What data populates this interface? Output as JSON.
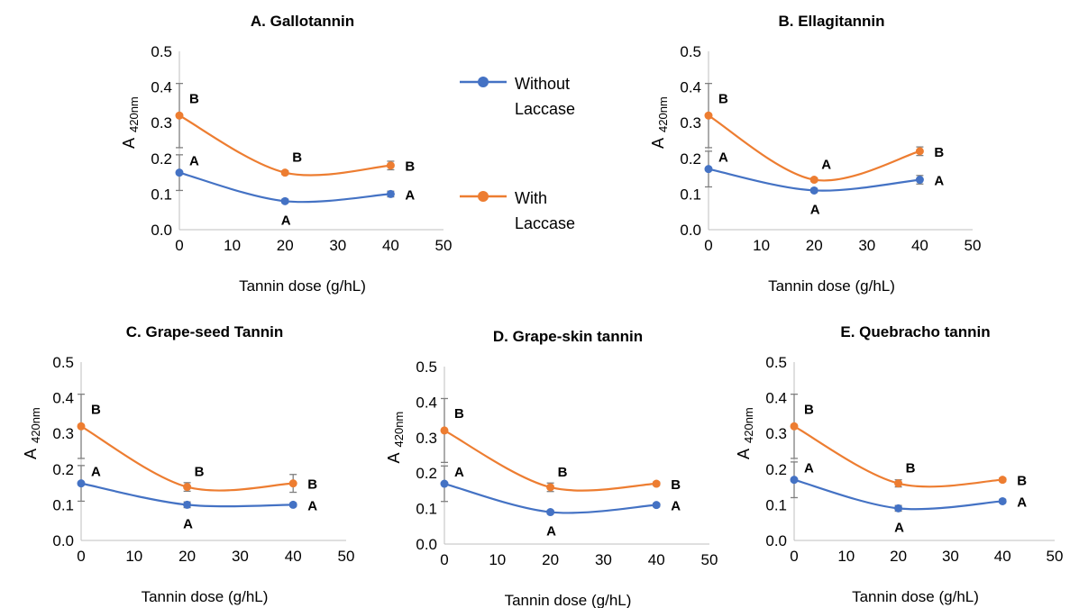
{
  "legend": {
    "items": [
      {
        "label_line1": "Without",
        "label_line2": "Laccase",
        "color": "#4472C4"
      },
      {
        "label_line1": "With",
        "label_line2": "Laccase",
        "color": "#ED7D31"
      }
    ]
  },
  "chart_data": [
    {
      "type": "line",
      "title": "A. Gallotannin",
      "xlabel": "Tannin dose (g/hL)",
      "ylabel_main": "A",
      "ylabel_sub": "420nm",
      "xlim": [
        0,
        50
      ],
      "ylim": [
        0,
        0.5
      ],
      "x_ticks": [
        "0",
        "10",
        "20",
        "30",
        "40",
        "50"
      ],
      "y_ticks": [
        "0.0",
        "0.1",
        "0.2",
        "0.3",
        "0.4",
        "0.5"
      ],
      "x": [
        0,
        20,
        40
      ],
      "series": [
        {
          "color": "#4472C4",
          "values": [
            0.16,
            0.08,
            0.1
          ],
          "errors": [
            0.05,
            0.005,
            0.008
          ],
          "letters": [
            "A",
            "A",
            "A"
          ],
          "letter_pos": [
            "above",
            "below",
            "right"
          ]
        },
        {
          "color": "#ED7D31",
          "values": [
            0.32,
            0.16,
            0.18
          ],
          "errors": [
            0.09,
            0.005,
            0.012
          ],
          "letters": [
            "B",
            "B",
            "B"
          ],
          "letter_pos": [
            "above",
            "above",
            "right"
          ]
        }
      ]
    },
    {
      "type": "line",
      "title": "B. Ellagitannin",
      "xlabel": "Tannin dose (g/hL)",
      "ylabel_main": "A",
      "ylabel_sub": "420nm",
      "xlim": [
        0,
        50
      ],
      "ylim": [
        0,
        0.5
      ],
      "x_ticks": [
        "0",
        "10",
        "20",
        "30",
        "40",
        "50"
      ],
      "y_ticks": [
        "0.0",
        "0.1",
        "0.2",
        "0.3",
        "0.4",
        "0.5"
      ],
      "x": [
        0,
        20,
        40
      ],
      "series": [
        {
          "color": "#4472C4",
          "values": [
            0.17,
            0.11,
            0.14
          ],
          "errors": [
            0.05,
            0.005,
            0.012
          ],
          "letters": [
            "A",
            "A",
            "A"
          ],
          "letter_pos": [
            "above",
            "below",
            "right"
          ]
        },
        {
          "color": "#ED7D31",
          "values": [
            0.32,
            0.14,
            0.22
          ],
          "errors": [
            0.09,
            0.005,
            0.012
          ],
          "letters": [
            "B",
            "A",
            "B"
          ],
          "letter_pos": [
            "above",
            "above",
            "right"
          ]
        }
      ]
    },
    {
      "type": "line",
      "title": "C. Grape-seed Tannin",
      "xlabel": "Tannin dose (g/hL)",
      "ylabel_main": "A",
      "ylabel_sub": "420nm",
      "xlim": [
        0,
        50
      ],
      "ylim": [
        0,
        0.5
      ],
      "x_ticks": [
        "0",
        "10",
        "20",
        "30",
        "40",
        "50"
      ],
      "y_ticks": [
        "0.0",
        "0.1",
        "0.2",
        "0.3",
        "0.4",
        "0.5"
      ],
      "x": [
        0,
        20,
        40
      ],
      "series": [
        {
          "color": "#4472C4",
          "values": [
            0.16,
            0.1,
            0.1
          ],
          "errors": [
            0.05,
            0.008,
            0.005
          ],
          "letters": [
            "A",
            "A",
            "A"
          ],
          "letter_pos": [
            "above",
            "below",
            "right"
          ]
        },
        {
          "color": "#ED7D31",
          "values": [
            0.32,
            0.15,
            0.16
          ],
          "errors": [
            0.09,
            0.012,
            0.025
          ],
          "letters": [
            "B",
            "B",
            "B"
          ],
          "letter_pos": [
            "above",
            "above",
            "right"
          ]
        }
      ]
    },
    {
      "type": "line",
      "title": "D. Grape-skin tannin",
      "xlabel": "Tannin dose (g/hL)",
      "ylabel_main": "A",
      "ylabel_sub": "420nm",
      "xlim": [
        0,
        50
      ],
      "ylim": [
        0,
        0.5
      ],
      "x_ticks": [
        "0",
        "10",
        "20",
        "30",
        "40",
        "50"
      ],
      "y_ticks": [
        "0.0",
        "0.1",
        "0.2",
        "0.3",
        "0.4",
        "0.5"
      ],
      "x": [
        0,
        20,
        40
      ],
      "series": [
        {
          "color": "#4472C4",
          "values": [
            0.17,
            0.09,
            0.11
          ],
          "errors": [
            0.05,
            0.005,
            0.005
          ],
          "letters": [
            "A",
            "A",
            "A"
          ],
          "letter_pos": [
            "above",
            "below",
            "right"
          ]
        },
        {
          "color": "#ED7D31",
          "values": [
            0.32,
            0.16,
            0.17
          ],
          "errors": [
            0.09,
            0.012,
            0.005
          ],
          "letters": [
            "B",
            "B",
            "B"
          ],
          "letter_pos": [
            "above",
            "above",
            "right"
          ]
        }
      ]
    },
    {
      "type": "line",
      "title": "E. Quebracho tannin",
      "xlabel": "Tannin dose (g/hL)",
      "ylabel_main": "A",
      "ylabel_sub": "420nm",
      "xlim": [
        0,
        50
      ],
      "ylim": [
        0,
        0.5
      ],
      "x_ticks": [
        "0",
        "10",
        "20",
        "30",
        "40",
        "50"
      ],
      "y_ticks": [
        "0.0",
        "0.1",
        "0.2",
        "0.3",
        "0.4",
        "0.5"
      ],
      "x": [
        0,
        20,
        40
      ],
      "series": [
        {
          "color": "#4472C4",
          "values": [
            0.17,
            0.09,
            0.11
          ],
          "errors": [
            0.05,
            0.008,
            0.005
          ],
          "letters": [
            "A",
            "A",
            "A"
          ],
          "letter_pos": [
            "above",
            "below",
            "right"
          ]
        },
        {
          "color": "#ED7D31",
          "values": [
            0.32,
            0.16,
            0.17
          ],
          "errors": [
            0.09,
            0.01,
            0.005
          ],
          "letters": [
            "B",
            "B",
            "B"
          ],
          "letter_pos": [
            "above",
            "above",
            "right"
          ]
        }
      ]
    }
  ]
}
